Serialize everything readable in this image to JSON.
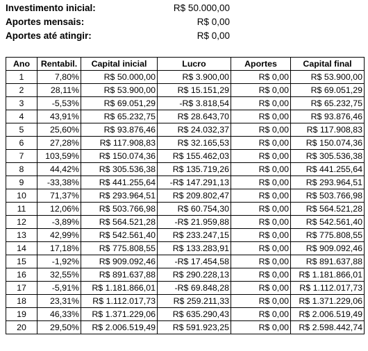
{
  "summary": [
    {
      "label": "Investimento inicial:",
      "value": "R$ 50.000,00"
    },
    {
      "label": "Aportes mensais:",
      "value": "R$ 0,00"
    },
    {
      "label": "Aportes até atingir:",
      "value": "R$ 0,00"
    }
  ],
  "table": {
    "headers": [
      "Ano",
      "Rentabil.",
      "Capital inicial",
      "Lucro",
      "Aportes",
      "Capital final"
    ],
    "rows": [
      [
        "1",
        "7,80%",
        "R$ 50.000,00",
        "R$ 3.900,00",
        "R$ 0,00",
        "R$ 53.900,00"
      ],
      [
        "2",
        "28,11%",
        "R$ 53.900,00",
        "R$ 15.151,29",
        "R$ 0,00",
        "R$ 69.051,29"
      ],
      [
        "3",
        "-5,53%",
        "R$ 69.051,29",
        "-R$ 3.818,54",
        "R$ 0,00",
        "R$ 65.232,75"
      ],
      [
        "4",
        "43,91%",
        "R$ 65.232,75",
        "R$ 28.643,70",
        "R$ 0,00",
        "R$ 93.876,46"
      ],
      [
        "5",
        "25,60%",
        "R$ 93.876,46",
        "R$ 24.032,37",
        "R$ 0,00",
        "R$ 117.908,83"
      ],
      [
        "6",
        "27,28%",
        "R$ 117.908,83",
        "R$ 32.165,53",
        "R$ 0,00",
        "R$ 150.074,36"
      ],
      [
        "7",
        "103,59%",
        "R$ 150.074,36",
        "R$ 155.462,03",
        "R$ 0,00",
        "R$ 305.536,38"
      ],
      [
        "8",
        "44,42%",
        "R$ 305.536,38",
        "R$ 135.719,26",
        "R$ 0,00",
        "R$ 441.255,64"
      ],
      [
        "9",
        "-33,38%",
        "R$ 441.255,64",
        "-R$ 147.291,13",
        "R$ 0,00",
        "R$ 293.964,51"
      ],
      [
        "10",
        "71,37%",
        "R$ 293.964,51",
        "R$ 209.802,47",
        "R$ 0,00",
        "R$ 503.766,98"
      ],
      [
        "11",
        "12,06%",
        "R$ 503.766,98",
        "R$ 60.754,30",
        "R$ 0,00",
        "R$ 564.521,28"
      ],
      [
        "12",
        "-3,89%",
        "R$ 564.521,28",
        "-R$ 21.959,88",
        "R$ 0,00",
        "R$ 542.561,40"
      ],
      [
        "13",
        "42,99%",
        "R$ 542.561,40",
        "R$ 233.247,15",
        "R$ 0,00",
        "R$ 775.808,55"
      ],
      [
        "14",
        "17,18%",
        "R$ 775.808,55",
        "R$ 133.283,91",
        "R$ 0,00",
        "R$ 909.092,46"
      ],
      [
        "15",
        "-1,92%",
        "R$ 909.092,46",
        "-R$ 17.454,58",
        "R$ 0,00",
        "R$ 891.637,88"
      ],
      [
        "16",
        "32,55%",
        "R$ 891.637,88",
        "R$ 290.228,13",
        "R$ 0,00",
        "R$ 1.181.866,01"
      ],
      [
        "17",
        "-5,91%",
        "R$ 1.181.866,01",
        "-R$ 69.848,28",
        "R$ 0,00",
        "R$ 1.112.017,73"
      ],
      [
        "18",
        "23,31%",
        "R$ 1.112.017,73",
        "R$ 259.211,33",
        "R$ 0,00",
        "R$ 1.371.229,06"
      ],
      [
        "19",
        "46,33%",
        "R$ 1.371.229,06",
        "R$ 635.290,43",
        "R$ 0,00",
        "R$ 2.006.519,49"
      ],
      [
        "20",
        "29,50%",
        "R$ 2.006.519,49",
        "R$ 591.923,25",
        "R$ 0,00",
        "R$ 2.598.442,74"
      ]
    ]
  }
}
